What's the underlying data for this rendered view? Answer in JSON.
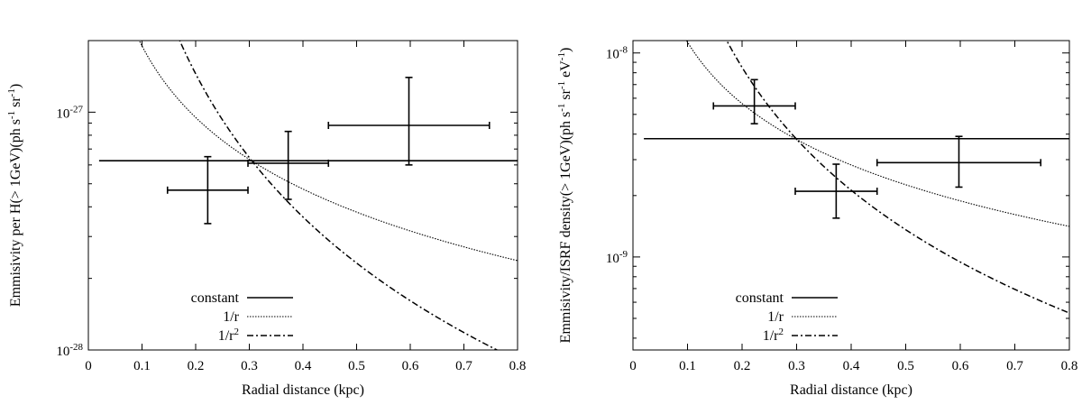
{
  "chart_data": [
    {
      "type": "line",
      "xlabel": "Radial distance (kpc)",
      "ylabel": "Emmisivity per H(> 1GeV)(ph s⁻¹ sr⁻¹)",
      "xlim": [
        0,
        0.8
      ],
      "ylim": [
        1e-28,
        2e-27
      ],
      "yscale": "log",
      "x_ticks": [
        0,
        0.1,
        0.2,
        0.3,
        0.4,
        0.5,
        0.6,
        0.7,
        0.8
      ],
      "x_tick_labels": [
        "0",
        "0.1",
        "0.2",
        "0.3",
        "0.4",
        "0.5",
        "0.6",
        "0.7",
        "0.8"
      ],
      "y_ticks": [
        {
          "value": 1e-28,
          "base": "10",
          "exp": "-28"
        },
        {
          "value": 1e-27,
          "base": "10",
          "exp": "-27"
        }
      ],
      "legend_position": "bottom-left",
      "series": [
        {
          "name": "constant",
          "model": "constant",
          "amplitude": 6.25e-28,
          "style": "solid"
        },
        {
          "name": "1/r",
          "model": "r^-1",
          "amplitude": 1.9e-28,
          "style": "dotted"
        },
        {
          "name": "1/r²",
          "model": "r^-2",
          "amplitude": 5.8e-29,
          "style": "dashdot"
        }
      ],
      "data_points": [
        {
          "x": 0.2225,
          "xerr": [
            0.1475,
            0.2975
          ],
          "y": 4.7e-28,
          "yerr": [
            3.4e-28,
            6.5e-28
          ]
        },
        {
          "x": 0.3725,
          "xerr": [
            0.2975,
            0.4475
          ],
          "y": 6.1e-28,
          "yerr": [
            4.3e-28,
            8.3e-28
          ]
        },
        {
          "x": 0.5975,
          "xerr": [
            0.4475,
            0.7475
          ],
          "y": 8.8e-28,
          "yerr": [
            6e-28,
            1.4e-27
          ]
        }
      ]
    },
    {
      "type": "line",
      "xlabel": "Radial distance (kpc)",
      "ylabel": "Emmisivity/ISRF density(> 1GeV)(ph s⁻¹ sr⁻¹ eV⁻¹)",
      "xlim": [
        0,
        0.8
      ],
      "ylim": [
        3.5e-10,
        1.15e-08
      ],
      "yscale": "log",
      "x_ticks": [
        0,
        0.1,
        0.2,
        0.3,
        0.4,
        0.5,
        0.6,
        0.7,
        0.8
      ],
      "x_tick_labels": [
        "0",
        "0.1",
        "0.2",
        "0.3",
        "0.4",
        "0.5",
        "0.6",
        "0.7",
        "0.8"
      ],
      "y_ticks": [
        {
          "value": 1e-09,
          "base": "10",
          "exp": "-9"
        },
        {
          "value": 1e-08,
          "base": "10",
          "exp": "-8"
        }
      ],
      "legend_position": "bottom-left",
      "series": [
        {
          "name": "constant",
          "model": "constant",
          "amplitude": 3.8e-09,
          "style": "solid"
        },
        {
          "name": "1/r",
          "model": "r^-1",
          "amplitude": 1.13e-09,
          "style": "dotted"
        },
        {
          "name": "1/r²",
          "model": "r^-2",
          "amplitude": 3.4e-10,
          "style": "dashdot"
        }
      ],
      "data_points": [
        {
          "x": 0.2225,
          "xerr": [
            0.1475,
            0.2975
          ],
          "y": 5.5e-09,
          "yerr": [
            4.5e-09,
            7.4e-09
          ]
        },
        {
          "x": 0.3725,
          "xerr": [
            0.2975,
            0.4475
          ],
          "y": 2.1e-09,
          "yerr": [
            1.55e-09,
            2.85e-09
          ]
        },
        {
          "x": 0.5975,
          "xerr": [
            0.4475,
            0.7475
          ],
          "y": 2.9e-09,
          "yerr": [
            2.2e-09,
            3.9e-09
          ]
        }
      ]
    }
  ]
}
